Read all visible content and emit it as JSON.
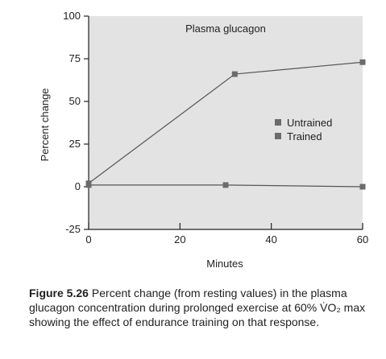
{
  "chart_data": {
    "type": "line",
    "title": "Plasma glucagon",
    "xlabel": "Minutes",
    "ylabel": "Percent change",
    "xlim": [
      0,
      60
    ],
    "ylim": [
      -25,
      100
    ],
    "xticks": [
      0,
      20,
      40,
      60
    ],
    "yticks": [
      -25,
      0,
      25,
      50,
      75,
      100
    ],
    "grid": false,
    "legend_position": "right",
    "series": [
      {
        "name": "Untrained",
        "color": "#6b6b6b",
        "x": [
          0,
          32,
          60
        ],
        "y": [
          2,
          66,
          73
        ]
      },
      {
        "name": "Trained",
        "color": "#6b6b6b",
        "x": [
          0,
          30,
          60
        ],
        "y": [
          1,
          1,
          0
        ]
      }
    ]
  },
  "caption": {
    "label": "Figure 5.26",
    "text": "Percent change (from resting values) in the plasma glucagon concentration during prolonged exercise at 60% V̇O₂ max showing the effect of endurance training on that response."
  }
}
